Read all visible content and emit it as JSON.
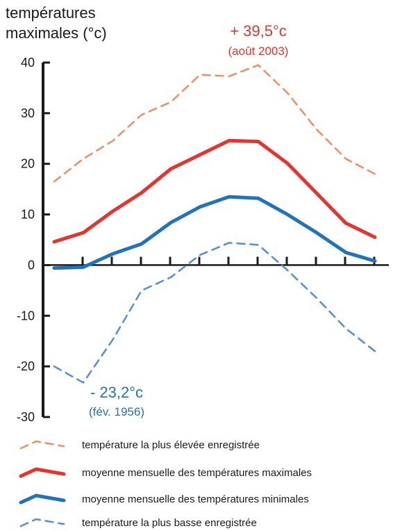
{
  "chart_data": {
    "type": "line",
    "ylabel_line1": "températures",
    "ylabel_line2": "maximales (°c)",
    "ylim": [
      -30,
      40
    ],
    "yticks": [
      "40",
      "30",
      "20",
      "10",
      "0",
      "-10",
      "-20",
      "-30"
    ],
    "x": [
      1,
      2,
      3,
      4,
      5,
      6,
      7,
      8,
      9,
      10,
      11,
      12
    ],
    "grid": false,
    "series": [
      {
        "name": "température la plus élevée enregistrée",
        "color": "#f0906a",
        "dash": true,
        "values": [
          16.5,
          21.0,
          24.5,
          29.7,
          32.2,
          37.6,
          37.3,
          39.5,
          34.0,
          26.8,
          21.0,
          18.0
        ]
      },
      {
        "name": "moyenne mensuelle des températures maximales",
        "color": "#e8332c",
        "dash": false,
        "values": [
          4.6,
          6.4,
          10.6,
          14.3,
          19.0,
          21.8,
          24.6,
          24.4,
          20.1,
          14.2,
          8.3,
          5.5
        ]
      },
      {
        "name": "moyenne mensuelle des températures minimales",
        "color": "#1e73be",
        "dash": false,
        "values": [
          -0.6,
          -0.4,
          2.2,
          4.2,
          8.4,
          11.5,
          13.5,
          13.2,
          10.0,
          6.4,
          2.5,
          0.8
        ]
      },
      {
        "name": "température la plus basse enregistrée",
        "color": "#5a8fd6",
        "dash": true,
        "values": [
          -20.0,
          -23.2,
          -14.8,
          -5.0,
          -2.4,
          2.0,
          4.4,
          4.0,
          -1.0,
          -6.5,
          -12.5,
          -17.0
        ]
      }
    ],
    "annotations": {
      "max_value": "+ 39,5°c",
      "max_date": "(août 2003)",
      "min_value": "- 23,2°c",
      "min_date": "(fév. 1956)"
    },
    "legend_placement": "bottom"
  }
}
